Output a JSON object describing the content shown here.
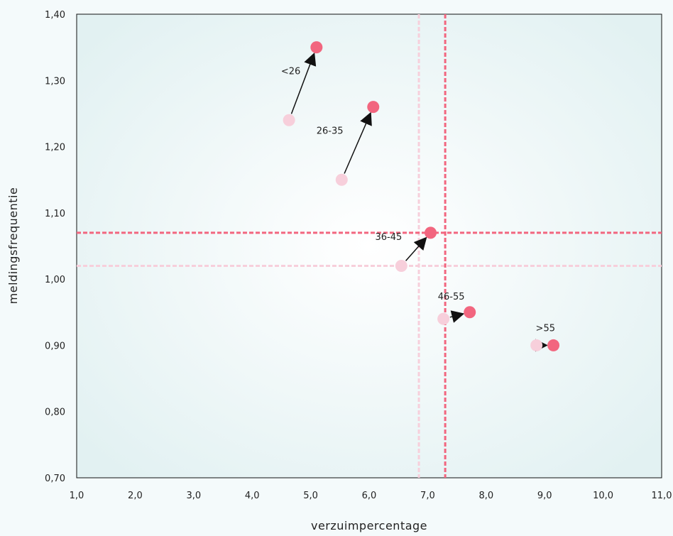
{
  "chart_data": {
    "type": "scatter",
    "xlabel": "verzuimpercentage",
    "ylabel": "meldingsfrequentie",
    "xlim": [
      1.0,
      11.0
    ],
    "ylim": [
      0.7,
      1.4
    ],
    "x_ticks": [
      1,
      2,
      3,
      4,
      5,
      6,
      7,
      8,
      9,
      10,
      11
    ],
    "y_ticks": [
      0.7,
      0.8,
      0.9,
      1.0,
      1.1,
      1.2,
      1.3,
      1.4
    ],
    "x_tick_labels": [
      "1,0",
      "2,0",
      "3,0",
      "4,0",
      "5,0",
      "6,0",
      "7,0",
      "8,0",
      "9,0",
      "10,0",
      "11,0"
    ],
    "y_tick_labels": [
      "0,70",
      "0,80",
      "0,90",
      "1,00",
      "1,10",
      "1,20",
      "1,30",
      "1,40"
    ],
    "groups": [
      {
        "label": "<26",
        "from": [
          4.63,
          1.24
        ],
        "to": [
          5.1,
          1.35
        ]
      },
      {
        "label": "26-35",
        "from": [
          5.53,
          1.15
        ],
        "to": [
          6.07,
          1.26
        ]
      },
      {
        "label": "36-45",
        "from": [
          6.55,
          1.02
        ],
        "to": [
          7.05,
          1.07
        ]
      },
      {
        "label": "46-55",
        "from": [
          7.27,
          0.94
        ],
        "to": [
          7.72,
          0.95
        ]
      },
      {
        "label": ">55",
        "from": [
          8.86,
          0.9
        ],
        "to": [
          9.15,
          0.9
        ]
      }
    ],
    "reference_lines": {
      "before": {
        "x": 6.85,
        "y": 1.02
      },
      "after": {
        "x": 7.3,
        "y": 1.07
      }
    },
    "colors": {
      "before": "#f7cfdb",
      "after": "#f2667f",
      "arrow": "#111111",
      "background_edge": "#e2f1f2",
      "background_center": "#ffffff"
    }
  }
}
